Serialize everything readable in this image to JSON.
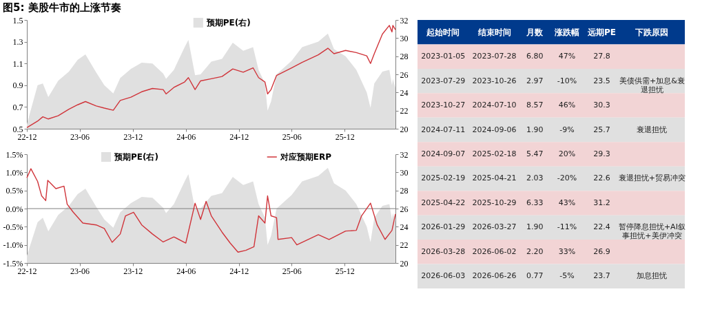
{
  "chart_data": [
    {
      "type": "line",
      "title": "图5: 美股牛市的上涨节奏",
      "legend": "top",
      "xlim": [
        "2022-12-01",
        "2026-05-25"
      ],
      "xticks": [
        {
          "value": "2022-12-01",
          "label": "22-12"
        },
        {
          "value": "2023-06-01",
          "label": "23-06"
        },
        {
          "value": "2023-12-01",
          "label": "23-12"
        },
        {
          "value": "2024-06-01",
          "label": "24-06"
        },
        {
          "value": "2024-12-01",
          "label": "24-12"
        },
        {
          "value": "2025-06-01",
          "label": "25-06"
        },
        {
          "value": "2025-12-01",
          "label": "25-12"
        }
      ],
      "ylim": [
        0.5,
        1.5
      ],
      "yticks": [
        0.5,
        0.7,
        0.9,
        1.1,
        1.3,
        1.5
      ],
      "y2lim": [
        20,
        32
      ],
      "y2ticks": [
        20,
        22,
        24,
        26,
        28,
        30,
        32
      ],
      "series": [
        {
          "name": "预期PE(右)",
          "type": "area",
          "axis": "y2",
          "color": "#e0e0e0",
          "x": [
            "2022-12-01",
            "2023-01-07",
            "2023-01-25",
            "2023-02-13",
            "2023-03-19",
            "2023-04-25",
            "2023-05-25",
            "2023-06-21",
            "2023-07-28",
            "2023-08-25",
            "2023-09-25",
            "2023-10-19",
            "2023-11-25",
            "2024-01-01",
            "2024-02-07",
            "2024-03-15",
            "2024-03-25",
            "2024-04-21",
            "2024-05-28",
            "2024-06-10",
            "2024-07-03",
            "2024-07-22",
            "2024-08-28",
            "2024-10-04",
            "2024-11-10",
            "2024-12-16",
            "2025-01-19",
            "2025-02-07",
            "2025-03-01",
            "2025-03-10",
            "2025-03-22",
            "2025-04-10",
            "2025-06-01",
            "2025-07-07",
            "2025-09-01",
            "2025-10-04",
            "2025-10-25",
            "2025-12-04",
            "2026-01-10",
            "2026-02-15",
            "2026-02-28",
            "2026-03-13",
            "2026-04-10",
            "2026-05-04",
            "2026-05-13",
            "2026-05-16",
            "2026-05-25"
          ],
          "values": [
            20.5,
            24.8,
            25.0,
            23.5,
            25.3,
            26.3,
            27.6,
            28.2,
            26.2,
            24.8,
            23.9,
            25.6,
            26.6,
            27.3,
            27.2,
            26.1,
            25.5,
            26.5,
            29.0,
            29.8,
            25.9,
            26.0,
            27.4,
            27.7,
            29.5,
            28.6,
            29.0,
            26.5,
            25.0,
            22.0,
            23.0,
            26.0,
            27.5,
            29.0,
            29.6,
            30.5,
            28.8,
            28.0,
            26.5,
            24.0,
            22.3,
            25.0,
            26.3,
            26.5,
            24.8,
            25.5,
            24.5
          ]
        },
        {
          "type": "line",
          "color": "#d0343a",
          "x": [
            "2022-12-01",
            "2023-01-07",
            "2023-01-25",
            "2023-02-13",
            "2023-03-19",
            "2023-04-25",
            "2023-05-25",
            "2023-06-21",
            "2023-07-28",
            "2023-08-25",
            "2023-09-25",
            "2023-10-19",
            "2023-11-25",
            "2024-01-01",
            "2024-02-07",
            "2024-03-15",
            "2024-03-25",
            "2024-04-21",
            "2024-05-28",
            "2024-06-10",
            "2024-07-03",
            "2024-07-22",
            "2024-08-28",
            "2024-10-04",
            "2024-11-10",
            "2024-12-16",
            "2025-01-19",
            "2025-02-07",
            "2025-03-01",
            "2025-03-10",
            "2025-03-22",
            "2025-04-10",
            "2025-06-01",
            "2025-07-07",
            "2025-09-01",
            "2025-10-04",
            "2025-10-25",
            "2025-12-04",
            "2026-01-10",
            "2026-02-15",
            "2026-02-28",
            "2026-03-13",
            "2026-04-10",
            "2026-05-04",
            "2026-05-13",
            "2026-05-16",
            "2026-05-25"
          ],
          "values": [
            0.51,
            0.57,
            0.61,
            0.59,
            0.62,
            0.68,
            0.72,
            0.75,
            0.71,
            0.69,
            0.67,
            0.76,
            0.79,
            0.84,
            0.87,
            0.86,
            0.82,
            0.88,
            0.93,
            0.97,
            0.86,
            0.94,
            0.96,
            0.98,
            1.05,
            1.02,
            1.06,
            0.97,
            0.93,
            0.82,
            0.86,
            0.99,
            1.06,
            1.11,
            1.18,
            1.24,
            1.19,
            1.22,
            1.2,
            1.17,
            1.1,
            1.19,
            1.37,
            1.45,
            1.39,
            1.45,
            1.41
          ]
        }
      ]
    },
    {
      "type": "line",
      "legend": "top",
      "xlim": [
        "2022-12-01",
        "2026-05-25"
      ],
      "xticks": [
        {
          "value": "2022-12-01",
          "label": "22-12"
        },
        {
          "value": "2023-06-01",
          "label": "23-06"
        },
        {
          "value": "2023-12-01",
          "label": "23-12"
        },
        {
          "value": "2024-06-01",
          "label": "24-06"
        },
        {
          "value": "2024-12-01",
          "label": "24-12"
        },
        {
          "value": "2025-06-01",
          "label": "25-06"
        },
        {
          "value": "2025-12-01",
          "label": "25-12"
        }
      ],
      "ylim": [
        -1.5,
        1.5
      ],
      "yticks": [
        {
          "value": -1.5,
          "label": "-1.5%"
        },
        {
          "value": -1,
          "label": "-1.0%"
        },
        {
          "value": -0.5,
          "label": "-0.5%"
        },
        {
          "value": 0,
          "label": "0.0%"
        },
        {
          "value": 0.5,
          "label": "0.5%"
        },
        {
          "value": 1,
          "label": "1.0%"
        },
        {
          "value": 1.5,
          "label": "1.5%"
        }
      ],
      "y2lim": [
        20,
        32
      ],
      "y2ticks": [
        20,
        22,
        24,
        26,
        28,
        30,
        32
      ],
      "ref_lines": [
        {
          "axis": "y",
          "value": 0,
          "color": "#7f7f7f"
        }
      ],
      "series": [
        {
          "name": "预期PE(右)",
          "type": "area",
          "axis": "y2",
          "color": "#e0e0e0",
          "x": [
            "2022-12-01",
            "2023-01-07",
            "2023-01-25",
            "2023-02-13",
            "2023-03-19",
            "2023-04-25",
            "2023-05-25",
            "2023-06-21",
            "2023-07-28",
            "2023-08-25",
            "2023-09-25",
            "2023-10-19",
            "2023-11-25",
            "2024-01-01",
            "2024-02-07",
            "2024-03-15",
            "2024-03-25",
            "2024-04-21",
            "2024-05-28",
            "2024-06-10",
            "2024-07-03",
            "2024-07-22",
            "2024-08-28",
            "2024-10-04",
            "2024-11-10",
            "2024-12-16",
            "2025-01-19",
            "2025-02-07",
            "2025-03-01",
            "2025-03-10",
            "2025-03-22",
            "2025-04-10",
            "2025-06-01",
            "2025-07-07",
            "2025-09-01",
            "2025-10-04",
            "2025-10-25",
            "2025-12-04",
            "2026-01-10",
            "2026-02-15",
            "2026-02-28",
            "2026-03-13",
            "2026-04-10",
            "2026-05-04",
            "2026-05-13",
            "2026-05-16",
            "2026-05-25"
          ],
          "values": [
            20.8,
            24.5,
            25.0,
            23.5,
            25.3,
            26.3,
            27.6,
            28.2,
            26.2,
            24.8,
            23.9,
            25.6,
            26.6,
            27.3,
            27.2,
            26.1,
            25.5,
            26.5,
            29.0,
            29.8,
            25.9,
            26.0,
            27.4,
            27.7,
            29.5,
            28.6,
            29.0,
            26.5,
            25.0,
            22.0,
            23.0,
            26.0,
            27.5,
            29.0,
            29.6,
            30.5,
            28.8,
            28.0,
            26.5,
            24.0,
            22.3,
            25.0,
            26.3,
            26.5,
            24.8,
            25.5,
            24.5
          ]
        },
        {
          "name": "对应预期ERP",
          "type": "line",
          "color": "#d0343a",
          "x": [
            "2022-12-01",
            "2022-12-15",
            "2023-01-07",
            "2023-01-21",
            "2023-02-04",
            "2023-02-11",
            "2023-03-11",
            "2023-04-08",
            "2023-04-19",
            "2023-05-10",
            "2023-06-12",
            "2023-07-28",
            "2023-08-25",
            "2023-09-21",
            "2023-10-19",
            "2023-11-06",
            "2023-12-04",
            "2024-01-01",
            "2024-02-07",
            "2024-03-15",
            "2024-04-21",
            "2024-06-01",
            "2024-07-03",
            "2024-07-22",
            "2024-08-10",
            "2024-08-28",
            "2024-10-04",
            "2024-11-01",
            "2024-11-28",
            "2024-12-25",
            "2025-01-22",
            "2025-02-07",
            "2025-03-01",
            "2025-03-10",
            "2025-03-22",
            "2025-04-10",
            "2025-04-15",
            "2025-06-01",
            "2025-06-19",
            "2025-09-01",
            "2025-10-08",
            "2025-12-04",
            "2026-01-10",
            "2026-01-28",
            "2026-02-28",
            "2026-03-23",
            "2026-04-19",
            "2026-05-13",
            "2026-05-25"
          ],
          "values": [
            0.85,
            1.1,
            0.75,
            0.35,
            0.22,
            0.78,
            0.55,
            0.62,
            0.12,
            -0.1,
            -0.4,
            -0.45,
            -0.55,
            -0.93,
            -0.7,
            -0.2,
            -0.1,
            -0.45,
            -0.7,
            -0.92,
            -0.78,
            -0.95,
            0.15,
            -0.3,
            0.2,
            -0.2,
            -0.65,
            -0.95,
            -1.2,
            -1.15,
            -1.05,
            -0.2,
            -0.4,
            0.35,
            -0.2,
            -0.25,
            -0.85,
            -0.8,
            -1.0,
            -0.72,
            -0.85,
            -0.62,
            -0.6,
            -0.2,
            0.15,
            -0.45,
            -0.85,
            -0.6,
            -0.15
          ]
        }
      ]
    },
    {
      "type": "other",
      "colors": [
        "#003a8c",
        "#f2d4d5",
        "#e0e0e0",
        "#f2d4d5",
        "#e0e0e0",
        "#f2d4d5",
        "#e0e0e0",
        "#f2d4d5",
        "#e0e0e0",
        "#f2d4d5",
        "#e0e0e0"
      ],
      "categories": [
        "起始时间",
        "结束时间",
        "月数",
        "涨跌幅",
        "远期PE",
        "下跌原因"
      ],
      "cell_labels": [
        [
          "2023-01-05",
          "2023-07-28",
          "6.80",
          "47%",
          "27.8",
          null
        ],
        [
          "2023-07-29",
          "2023-10-26",
          "2.97",
          "-10%",
          "23.5",
          [
            "美债供需+加息&衰",
            "退担忧"
          ]
        ],
        [
          "2023-10-27",
          "2024-07-10",
          "8.57",
          "46%",
          "30.3",
          null
        ],
        [
          "2024-07-11",
          "2024-09-06",
          "1.90",
          "-9%",
          "25.7",
          [
            "衰退担忧"
          ]
        ],
        [
          "2024-09-07",
          "2025-02-18",
          "5.47",
          "20%",
          "29.3",
          null
        ],
        [
          "2025-02-19",
          "2025-04-21",
          "2.03",
          "-20%",
          "22.6",
          [
            "衰退担忧+贸易冲突"
          ]
        ],
        [
          "2025-04-22",
          "2025-10-29",
          "6.33",
          "43%",
          "31.2",
          null
        ],
        [
          "2026-01-29",
          "2026-03-27",
          "1.90",
          "-11%",
          "22.4",
          [
            "暂停降息担忧+AI叙",
            "事担忧+美伊冲突"
          ]
        ],
        [
          "2026-03-28",
          "2026-06-02",
          "2.20",
          "33%",
          "26.9",
          null
        ],
        [
          "2026-06-03",
          "2026-06-26",
          "0.77",
          "-5%",
          "23.7",
          [
            "加息担忧"
          ]
        ]
      ]
    }
  ]
}
